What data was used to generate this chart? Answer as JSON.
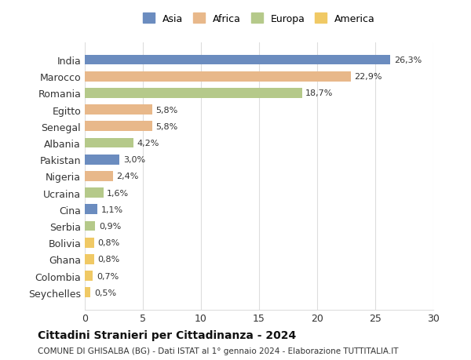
{
  "categories": [
    "India",
    "Marocco",
    "Romania",
    "Egitto",
    "Senegal",
    "Albania",
    "Pakistan",
    "Nigeria",
    "Ucraina",
    "Cina",
    "Serbia",
    "Bolivia",
    "Ghana",
    "Colombia",
    "Seychelles"
  ],
  "values": [
    26.3,
    22.9,
    18.7,
    5.8,
    5.8,
    4.2,
    3.0,
    2.4,
    1.6,
    1.1,
    0.9,
    0.8,
    0.8,
    0.7,
    0.5
  ],
  "labels": [
    "26,3%",
    "22,9%",
    "18,7%",
    "5,8%",
    "5,8%",
    "4,2%",
    "3,0%",
    "2,4%",
    "1,6%",
    "1,1%",
    "0,9%",
    "0,8%",
    "0,8%",
    "0,7%",
    "0,5%"
  ],
  "colors": [
    "#6b8cbf",
    "#e8b88a",
    "#b5c98a",
    "#e8b88a",
    "#e8b88a",
    "#b5c98a",
    "#6b8cbf",
    "#e8b88a",
    "#b5c98a",
    "#6b8cbf",
    "#b5c98a",
    "#f0c965",
    "#f0c965",
    "#f0c965",
    "#f0c965"
  ],
  "legend_labels": [
    "Asia",
    "Africa",
    "Europa",
    "America"
  ],
  "legend_colors": [
    "#6b8cbf",
    "#e8b88a",
    "#b5c98a",
    "#f0c965"
  ],
  "title": "Cittadini Stranieri per Cittadinanza - 2024",
  "subtitle": "COMUNE DI GHISALBA (BG) - Dati ISTAT al 1° gennaio 2024 - Elaborazione TUTTITALIA.IT",
  "xlim": [
    0,
    30
  ],
  "xticks": [
    0,
    5,
    10,
    15,
    20,
    25,
    30
  ],
  "background_color": "#ffffff",
  "grid_color": "#dddddd"
}
